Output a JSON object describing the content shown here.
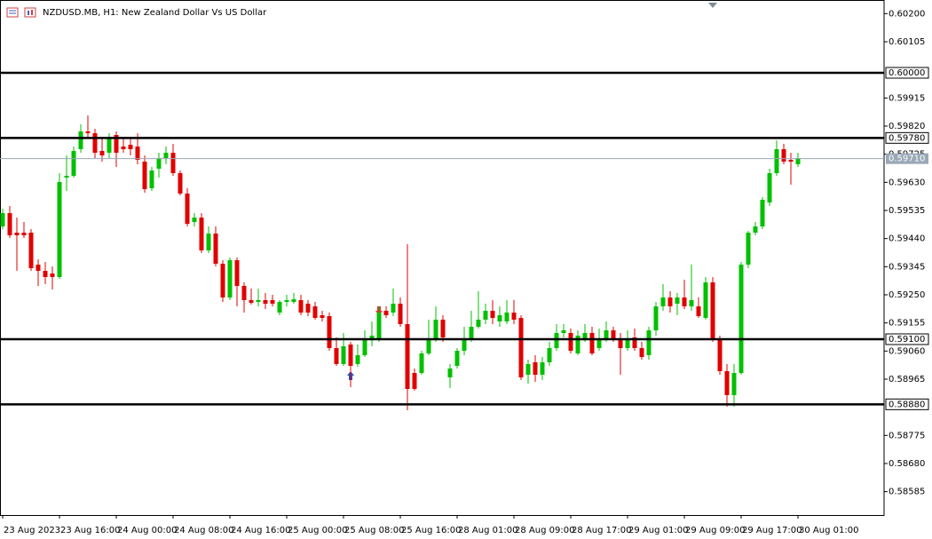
{
  "chart_data": {
    "type": "candlestick",
    "title": "NZDUSD.MB, H1:  New Zealand Dollar Vs US Dollar",
    "categories": [
      "23 Aug 2023",
      null,
      null,
      null,
      null,
      null,
      null,
      null,
      "23 Aug 16:00",
      null,
      null,
      null,
      null,
      null,
      null,
      null,
      "24 Aug 00:00",
      null,
      null,
      null,
      null,
      null,
      null,
      null,
      "24 Aug 08:00",
      null,
      null,
      null,
      null,
      null,
      null,
      null,
      "24 Aug 16:00",
      null,
      null,
      null,
      null,
      null,
      null,
      null,
      "25 Aug 00:00",
      null,
      null,
      null,
      null,
      null,
      null,
      null,
      "25 Aug 08:00",
      null,
      null,
      null,
      null,
      null,
      null,
      null,
      "25 Aug 16:00",
      null,
      null,
      null,
      null,
      null,
      null,
      null,
      "28 Aug 01:00",
      null,
      null,
      null,
      null,
      null,
      null,
      null,
      "28 Aug 09:00",
      null,
      null,
      null,
      null,
      null,
      null,
      null,
      "28 Aug 17:00",
      null,
      null,
      null,
      null,
      null,
      null,
      null,
      "29 Aug 01:00",
      null,
      null,
      null,
      null,
      null,
      null,
      null,
      "29 Aug 09:00",
      null,
      null,
      null,
      null,
      null,
      null,
      null,
      "29 Aug 17:00",
      null,
      null,
      null,
      null,
      null,
      null,
      null,
      "30 Aug 01:00"
    ],
    "open": [
      0.59481,
      0.59526,
      0.5946,
      0.5946,
      0.5946,
      0.59352,
      0.59331,
      0.59322,
      0.5931,
      0.59646,
      0.59652,
      0.59742,
      0.59802,
      0.59796,
      0.59736,
      0.5973,
      0.5979,
      0.59751,
      0.59757,
      0.59751,
      0.597,
      0.5961,
      0.59676,
      0.59712,
      0.5973,
      0.59661,
      0.59592,
      0.59496,
      0.59511,
      0.594,
      0.59457,
      0.59355,
      0.59241,
      0.59367,
      0.5928,
      0.59232,
      0.59226,
      0.59232,
      0.59232,
      0.5919,
      0.59226,
      0.59226,
      0.59232,
      0.5922,
      0.59211,
      0.59181,
      0.59178,
      0.5907,
      0.59016,
      0.59082,
      0.59016,
      0.59046,
      0.591,
      0.591,
      0.59196,
      0.5919,
      0.5922,
      0.59151,
      0.58986,
      0.58986,
      0.59052,
      0.591,
      0.59166,
      0.58971,
      0.5901,
      0.59061,
      0.591,
      0.59142,
      0.59166,
      0.59196,
      0.5916,
      0.5916,
      0.5919,
      0.59172,
      0.5898,
      0.59022,
      0.5898,
      0.59022,
      0.5907,
      0.59121,
      0.59121,
      0.59052,
      0.591,
      0.59121,
      0.5907,
      0.591,
      0.5913,
      0.591,
      0.5907,
      0.59106,
      0.5907,
      0.59046,
      0.5913,
      0.59211,
      0.59241,
      0.5922,
      0.59241,
      0.59211,
      0.59211,
      0.59172,
      0.59292,
      0.591,
      0.58992,
      0.58911,
      0.58986,
      0.59352,
      0.5946,
      0.59481,
      0.59562,
      0.59661,
      0.59742,
      0.59706,
      0.59691
    ],
    "high": [
      0.59541,
      0.5955,
      0.59511,
      0.59496,
      0.59472,
      0.5937,
      0.59361,
      0.59346,
      0.59661,
      0.59721,
      0.59751,
      0.59826,
      0.59856,
      0.59811,
      0.59781,
      0.59796,
      0.59802,
      0.59781,
      0.59781,
      0.59796,
      0.59721,
      0.59682,
      0.5973,
      0.59751,
      0.5976,
      0.5967,
      0.5961,
      0.59526,
      0.59526,
      0.59481,
      0.59481,
      0.59367,
      0.59376,
      0.59376,
      0.59292,
      0.59271,
      0.59271,
      0.59256,
      0.5925,
      0.59232,
      0.5925,
      0.59256,
      0.5925,
      0.59232,
      0.59226,
      0.59196,
      0.5919,
      0.59106,
      0.59121,
      0.59091,
      0.59082,
      0.5913,
      0.5916,
      0.59211,
      0.59211,
      0.59271,
      0.59241,
      0.59421,
      0.59001,
      0.59061,
      0.59166,
      0.59211,
      0.59181,
      0.59016,
      0.5907,
      0.59142,
      0.59196,
      0.59262,
      0.5922,
      0.59232,
      0.59211,
      0.59232,
      0.59232,
      0.59181,
      0.59031,
      0.59046,
      0.5904,
      0.59091,
      0.59151,
      0.59151,
      0.59136,
      0.5913,
      0.59151,
      0.59142,
      0.59136,
      0.5916,
      0.59142,
      0.59121,
      0.5913,
      0.59136,
      0.59091,
      0.59142,
      0.59226,
      0.59286,
      0.59262,
      0.59256,
      0.59301,
      0.59352,
      0.59241,
      0.5931,
      0.5931,
      0.59112,
      0.59016,
      0.59016,
      0.59361,
      0.59466,
      0.59496,
      0.5958,
      0.59676,
      0.59772,
      0.5976,
      0.5973,
      0.5973
    ],
    "low": [
      0.59472,
      0.59442,
      0.59331,
      0.59442,
      0.59331,
      0.5928,
      0.59286,
      0.59268,
      0.59304,
      0.59601,
      0.59646,
      0.5973,
      0.59781,
      0.59712,
      0.597,
      0.59712,
      0.59682,
      0.5973,
      0.59721,
      0.59691,
      0.59595,
      0.59601,
      0.59646,
      0.59691,
      0.59652,
      0.59586,
      0.59481,
      0.59481,
      0.59391,
      0.59391,
      0.59346,
      0.59226,
      0.59232,
      0.59211,
      0.5919,
      0.59217,
      0.59211,
      0.59202,
      0.59211,
      0.59181,
      0.59211,
      0.5922,
      0.59181,
      0.59178,
      0.59166,
      0.5916,
      0.59061,
      0.5901,
      0.5901,
      0.58938,
      0.59007,
      0.5904,
      0.59076,
      0.59091,
      0.59172,
      0.59178,
      0.59142,
      0.5886,
      0.58926,
      0.5898,
      0.59046,
      0.59091,
      0.59091,
      0.58935,
      0.59001,
      0.59046,
      0.59091,
      0.59136,
      0.59151,
      0.59151,
      0.59142,
      0.59151,
      0.59151,
      0.58962,
      0.5895,
      0.58956,
      0.58962,
      0.5901,
      0.59061,
      0.59106,
      0.59052,
      0.59046,
      0.59091,
      0.59046,
      0.59061,
      0.59091,
      0.59091,
      0.5898,
      0.59061,
      0.59061,
      0.59031,
      0.59031,
      0.59112,
      0.59196,
      0.5919,
      0.59181,
      0.59202,
      0.59196,
      0.59172,
      0.59166,
      0.59091,
      0.5898,
      0.58872,
      0.58872,
      0.5898,
      0.5934,
      0.59451,
      0.59472,
      0.5955,
      0.59652,
      0.59691,
      0.59622,
      0.59682
    ],
    "close": [
      0.59526,
      0.59451,
      0.59451,
      0.59451,
      0.5934,
      0.59331,
      0.5931,
      0.5931,
      0.59631,
      0.59652,
      0.59736,
      0.59802,
      0.59796,
      0.5973,
      0.59721,
      0.59781,
      0.5973,
      0.59742,
      0.59742,
      0.59706,
      0.59607,
      0.5967,
      0.59712,
      0.5973,
      0.59661,
      0.59592,
      0.5949,
      0.59511,
      0.594,
      0.59457,
      0.59355,
      0.59241,
      0.59367,
      0.5928,
      0.59232,
      0.59223,
      0.59232,
      0.5922,
      0.5922,
      0.59226,
      0.59232,
      0.59235,
      0.5919,
      0.5919,
      0.59172,
      0.59172,
      0.5907,
      0.59016,
      0.59076,
      0.5901,
      0.59046,
      0.591,
      0.59112,
      0.5919,
      0.59181,
      0.5922,
      0.59151,
      0.58932,
      0.58932,
      0.59052,
      0.591,
      0.59166,
      0.59106,
      0.59001,
      0.59061,
      0.591,
      0.59142,
      0.59166,
      0.59196,
      0.59172,
      0.59181,
      0.5919,
      0.59166,
      0.58971,
      0.59016,
      0.5898,
      0.59022,
      0.5907,
      0.59121,
      0.5913,
      0.59061,
      0.59112,
      0.59121,
      0.59052,
      0.591,
      0.5913,
      0.591,
      0.5907,
      0.591,
      0.5907,
      0.5904,
      0.5913,
      0.59211,
      0.59241,
      0.59211,
      0.59241,
      0.59211,
      0.59232,
      0.59178,
      0.59292,
      0.591,
      0.58992,
      0.58911,
      0.58986,
      0.59352,
      0.5946,
      0.59481,
      0.59571,
      0.59661,
      0.59742,
      0.597,
      0.597,
      0.59712
    ],
    "up_color": "#00c000",
    "down_color": "#e00000",
    "ylim": [
      0.58506,
      0.60246
    ],
    "yticks": [
      {
        "value": 0.602,
        "label": "0.60200"
      },
      {
        "value": 0.60105,
        "label": "0.60105"
      },
      {
        "value": 0.59915,
        "label": "0.59915"
      },
      {
        "value": 0.5982,
        "label": "0.59820"
      },
      {
        "value": 0.59725,
        "label": "0.59725"
      },
      {
        "value": 0.5963,
        "label": "0.59630"
      },
      {
        "value": 0.59535,
        "label": "0.59535"
      },
      {
        "value": 0.5944,
        "label": "0.59440"
      },
      {
        "value": 0.59345,
        "label": "0.59345"
      },
      {
        "value": 0.5925,
        "label": "0.59250"
      },
      {
        "value": 0.59155,
        "label": "0.59155"
      },
      {
        "value": 0.5906,
        "label": "0.59060"
      },
      {
        "value": 0.58965,
        "label": "0.58965"
      },
      {
        "value": 0.58775,
        "label": "0.58775"
      },
      {
        "value": 0.5868,
        "label": "0.58680"
      },
      {
        "value": 0.58585,
        "label": "0.58585"
      }
    ],
    "levels": [
      {
        "value": 0.6,
        "label": "0.60000"
      },
      {
        "value": 0.5978,
        "label": "0.59780"
      },
      {
        "value": 0.591,
        "label": "0.59100"
      },
      {
        "value": 0.5888,
        "label": "0.58880"
      }
    ],
    "level_color": "#000000",
    "current_price": {
      "value": 0.5971,
      "label": "0.59710"
    },
    "current_price_color": "#9aa8b6",
    "grid": false
  }
}
